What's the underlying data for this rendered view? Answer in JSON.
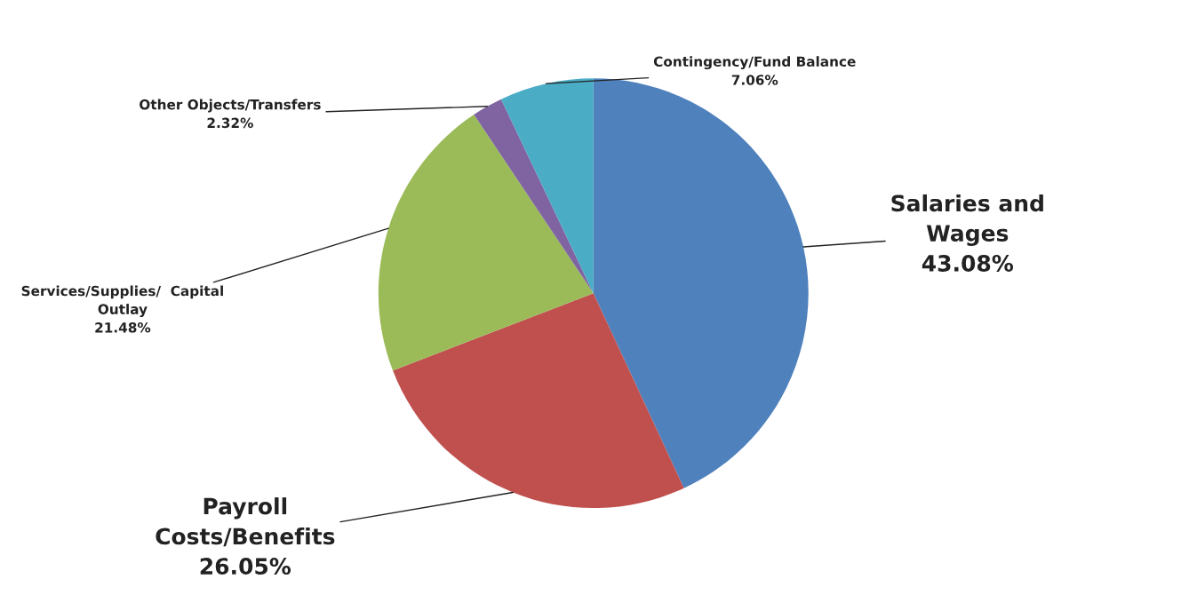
{
  "chart_data": {
    "type": "pie",
    "categories": [
      "Salaries and\nWages",
      "Payroll\nCosts/Benefits",
      "Services/Supplies/  Capital\nOutlay",
      "Other Objects/Transfers",
      "Contingency/Fund Balance"
    ],
    "values": [
      43.08,
      26.05,
      21.48,
      2.32,
      7.06
    ],
    "colors": [
      "#4f81bd",
      "#c0504d",
      "#9bbb59",
      "#8064a2",
      "#4bacc6"
    ],
    "value_labels": [
      "43.08%",
      "26.05%",
      "21.48%",
      "2.32%",
      "7.06%"
    ],
    "legend": false
  }
}
